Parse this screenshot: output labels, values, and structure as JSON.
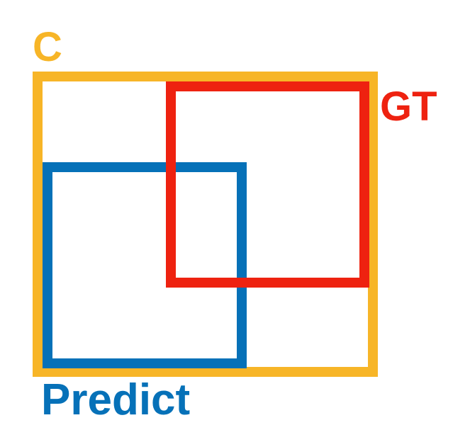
{
  "diagram": {
    "boxes": {
      "c": {
        "label": "C",
        "color": "#F7B527"
      },
      "gt": {
        "label": "GT",
        "color": "#EE2210"
      },
      "predict": {
        "label": "Predict",
        "color": "#0671B8"
      }
    }
  }
}
